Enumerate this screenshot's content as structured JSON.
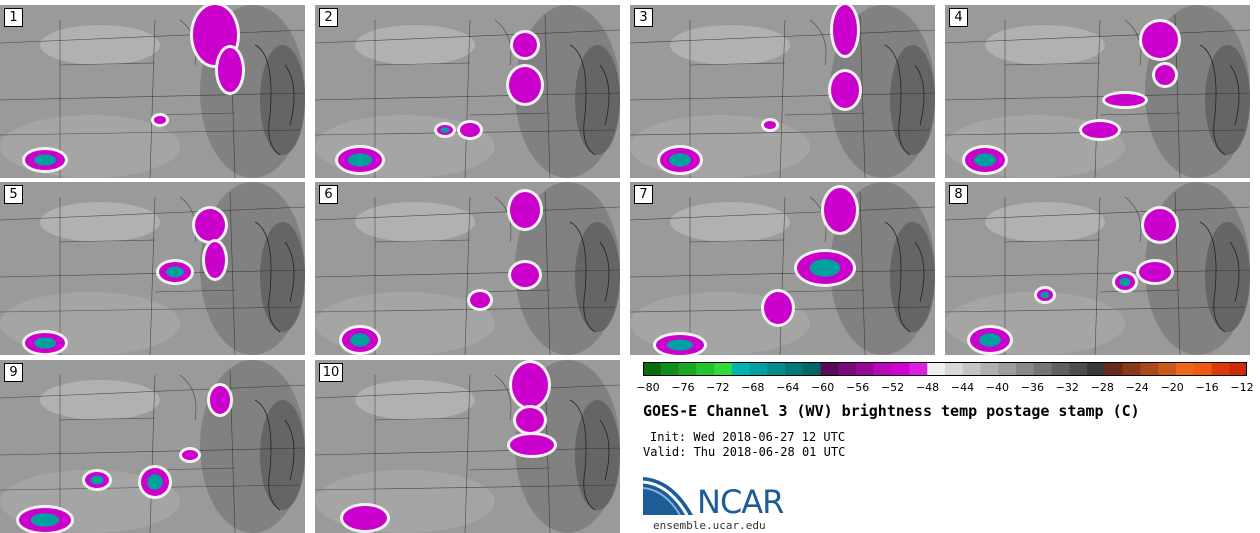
{
  "panels": [
    {
      "label": "1"
    },
    {
      "label": "2"
    },
    {
      "label": "3"
    },
    {
      "label": "4"
    },
    {
      "label": "5"
    },
    {
      "label": "6"
    },
    {
      "label": "7"
    },
    {
      "label": "8"
    },
    {
      "label": "9"
    },
    {
      "label": "10"
    }
  ],
  "colorbar": {
    "ticks": [
      "−80",
      "−76",
      "−72",
      "−68",
      "−64",
      "−60",
      "−56",
      "−52",
      "−48",
      "−44",
      "−40",
      "−36",
      "−32",
      "−28",
      "−24",
      "−20",
      "−16",
      "−12"
    ],
    "colors": [
      "#0a6a10",
      "#128c1a",
      "#1aa822",
      "#24c42c",
      "#30dc38",
      "#00b4b4",
      "#00a0a0",
      "#008c8c",
      "#007878",
      "#006666",
      "#5a0a5a",
      "#7a0a7a",
      "#9a089a",
      "#b808b8",
      "#d000d0",
      "#e020e0",
      "#eeeeee",
      "#d8d8d8",
      "#c4c4c4",
      "#b0b0b0",
      "#9c9c9c",
      "#888888",
      "#747474",
      "#606060",
      "#4c4c4c",
      "#383838",
      "#6a2a1a",
      "#8a3a1a",
      "#aa4a1a",
      "#ca5a1a",
      "#ea6a1a",
      "#ee5a12",
      "#dd3a0a",
      "#cc2a08"
    ]
  },
  "title": "GOES-E Channel 3 (WV) brightness temp postage stamp (C)",
  "init": "Init: Wed 2018-06-27 12 UTC",
  "valid": "Valid: Thu 2018-06-28 01 UTC",
  "logo": {
    "text": "NCAR",
    "url": "ensemble.ucar.edu",
    "color": "#1d5c96"
  },
  "colors": {
    "cold_cloud": "#cc00cc",
    "very_cold": "#00a0a0",
    "background": "#8a8a8a"
  }
}
